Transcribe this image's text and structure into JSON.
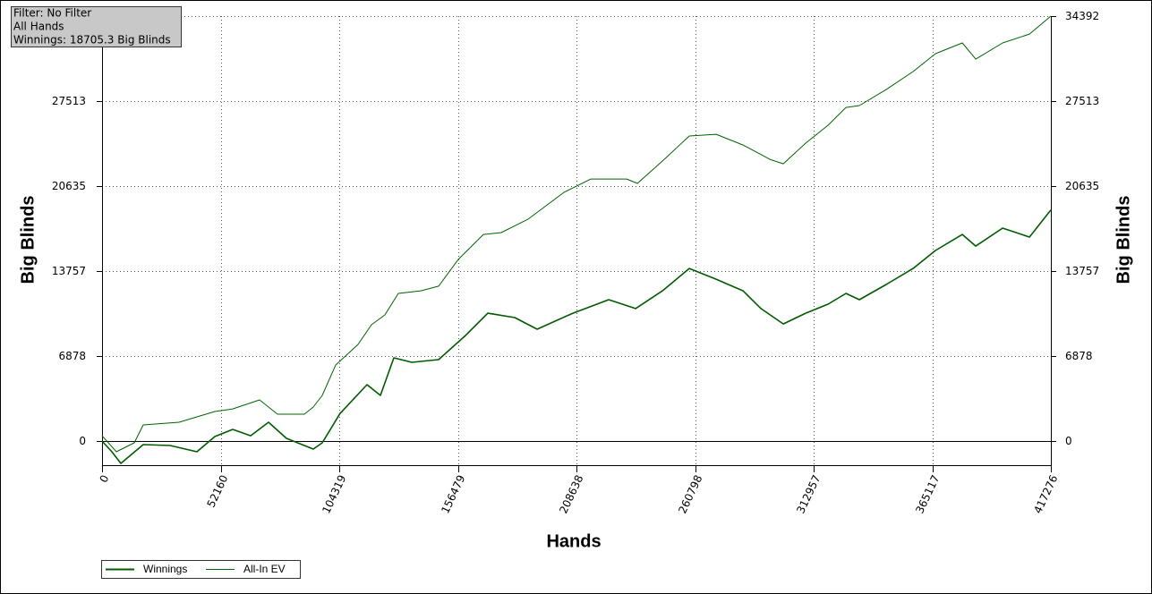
{
  "chart_data": {
    "type": "line",
    "info_box": [
      "Filter: No Filter",
      "All Hands",
      "Winnings: 18705.3 Big Blinds"
    ],
    "x_label": "Hands",
    "y_label": "Big Blinds",
    "y2_label": "Big Blinds",
    "xlim": [
      0,
      417276
    ],
    "xticks": [
      0,
      52160,
      104319,
      156479,
      208638,
      260798,
      312957,
      365117,
      417276
    ],
    "ylim": [
      -1955,
      34392
    ],
    "yticks": [
      0,
      6878,
      13757,
      20635,
      27513,
      34392
    ],
    "y2lim": [
      -1955,
      34392
    ],
    "y2ticks": [
      0,
      6878,
      13757,
      20635,
      27513,
      34392
    ],
    "grid": true,
    "series": [
      {
        "name": "Winnings",
        "color": "#005a00",
        "x": [
          0,
          4331,
          8268,
          18110,
          29921,
          41732,
          49606,
          57480,
          65354,
          73228,
          81102,
          92913,
          96850,
          104724,
          116535,
          122441,
          128346,
          136220,
          148031,
          159842,
          169685,
          181496,
          191338,
          207086,
          222834,
          234645,
          246456,
          258267,
          270078,
          281889,
          289763,
          299606,
          309448,
          319291,
          327165,
          333070,
          344881,
          356692,
          366535,
          378346,
          384252,
          396063,
          407874,
          417276
        ],
        "values": [
          0,
          -870,
          -1810,
          -290,
          -360,
          -870,
          360,
          940,
          430,
          1520,
          220,
          -650,
          -145,
          2240,
          4560,
          3690,
          6730,
          6370,
          6590,
          8540,
          10350,
          9990,
          9050,
          10350,
          11440,
          10720,
          12160,
          13970,
          13100,
          12160,
          10720,
          9480,
          10350,
          11080,
          11950,
          11440,
          12670,
          13970,
          15420,
          16720,
          15780,
          17230,
          16510,
          18705.3
        ]
      },
      {
        "name": "All-In EV",
        "color": "#006400",
        "x": [
          0,
          6299,
          14173,
          18110,
          33858,
          49606,
          57480,
          69291,
          77165,
          88976,
          92913,
          96850,
          102756,
          112598,
          118504,
          124409,
          130315,
          140157,
          148031,
          156692,
          167716,
          175590,
          187402,
          203149,
          214960,
          230708,
          235433,
          246456,
          258267,
          270078,
          281889,
          293700,
          299606,
          309448,
          319291,
          327165,
          333070,
          344881,
          356692,
          366535,
          378346,
          384252,
          396063,
          407874,
          417276
        ],
        "values": [
          430,
          -870,
          -145,
          1300,
          1520,
          2390,
          2600,
          3330,
          2170,
          2170,
          2750,
          3690,
          6150,
          7820,
          9410,
          10210,
          11950,
          12160,
          12530,
          14700,
          16720,
          16870,
          17960,
          20130,
          21210,
          21210,
          20850,
          22660,
          24690,
          24830,
          23960,
          22800,
          22440,
          24110,
          25560,
          27000,
          27150,
          28450,
          29900,
          31350,
          32220,
          30910,
          32220,
          32940,
          34392
        ]
      }
    ]
  }
}
